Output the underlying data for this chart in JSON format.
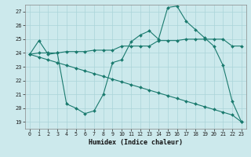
{
  "xlabel": "Humidex (Indice chaleur)",
  "bg_color": "#cce9ec",
  "line_color": "#1a7a6e",
  "grid_color": "#aad4d8",
  "xlim": [
    -0.5,
    23.5
  ],
  "ylim": [
    18.5,
    27.5
  ],
  "yticks": [
    19,
    20,
    21,
    22,
    23,
    24,
    25,
    26,
    27
  ],
  "xticks": [
    0,
    1,
    2,
    3,
    4,
    5,
    6,
    7,
    8,
    9,
    10,
    11,
    12,
    13,
    14,
    15,
    16,
    17,
    18,
    19,
    20,
    21,
    22,
    23
  ],
  "line1_x": [
    0,
    1,
    2,
    3,
    4,
    5,
    6,
    7,
    8,
    9,
    10,
    11,
    12,
    13,
    14,
    15,
    16,
    17,
    18,
    19,
    20,
    21,
    22,
    23
  ],
  "line1_y": [
    23.9,
    23.7,
    23.5,
    23.3,
    23.1,
    22.9,
    22.7,
    22.5,
    22.3,
    22.1,
    21.9,
    21.7,
    21.5,
    21.3,
    21.1,
    20.9,
    20.7,
    20.5,
    20.3,
    20.1,
    19.9,
    19.7,
    19.5,
    19.0
  ],
  "line2_x": [
    0,
    1,
    2,
    3,
    4,
    5,
    6,
    7,
    8,
    9,
    10,
    11,
    12,
    13,
    14,
    15,
    16,
    17,
    18,
    19,
    20,
    21,
    22,
    23
  ],
  "line2_y": [
    23.9,
    24.9,
    23.9,
    24.0,
    20.3,
    20.0,
    19.6,
    19.8,
    21.0,
    23.3,
    23.5,
    24.8,
    25.3,
    25.6,
    25.0,
    27.3,
    27.4,
    26.3,
    25.7,
    25.1,
    24.5,
    23.1,
    20.5,
    19.0
  ],
  "line3_x": [
    0,
    1,
    2,
    3,
    4,
    5,
    6,
    7,
    8,
    9,
    10,
    11,
    12,
    13,
    14,
    15,
    16,
    17,
    18,
    19,
    20,
    21,
    22,
    23
  ],
  "line3_y": [
    23.9,
    24.0,
    24.0,
    24.0,
    24.1,
    24.1,
    24.1,
    24.2,
    24.2,
    24.2,
    24.5,
    24.5,
    24.5,
    24.5,
    24.9,
    24.9,
    24.9,
    25.0,
    25.0,
    25.0,
    25.0,
    25.0,
    24.5,
    24.5
  ]
}
